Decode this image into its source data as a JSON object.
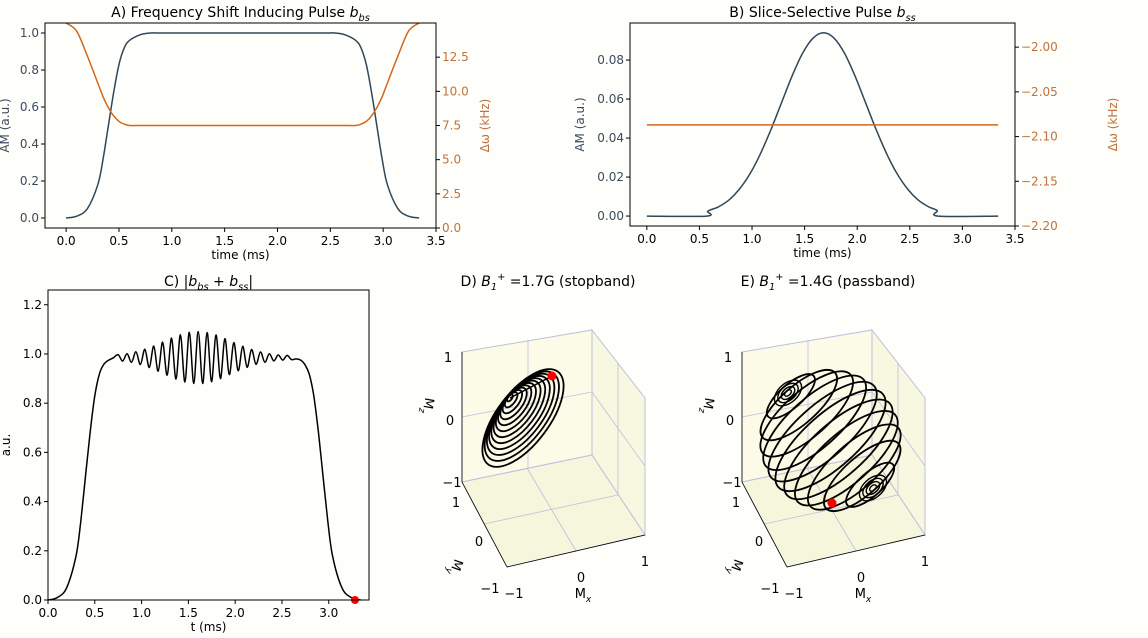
{
  "chart_data": [
    {
      "panel": "A",
      "type": "line",
      "title_parts": [
        {
          "t": "A) Frequency Shift Inducing Pulse "
        },
        {
          "t": "b",
          "style": "i"
        },
        {
          "t": "bs",
          "style": "sub"
        }
      ],
      "xlabel": "time (ms)",
      "ylabel": "AM (a.u.)",
      "y2label": "Δω (kHz)",
      "xlim": [
        -0.2,
        3.5
      ],
      "ylim": [
        -0.054,
        1.054
      ],
      "y2lim": [
        0,
        15
      ],
      "xticks": [
        "0.0",
        "0.5",
        "1.0",
        "1.5",
        "2.0",
        "2.5",
        "3.0",
        "3.5"
      ],
      "yticks": [
        "0.0",
        "0.2",
        "0.4",
        "0.6",
        "0.8",
        "1.0"
      ],
      "y2ticks": [
        "0.0",
        "2.5",
        "5.0",
        "7.5",
        "10.0",
        "12.5"
      ],
      "colors": {
        "left": "#3b4b5c",
        "right": "#c0733e"
      },
      "series": [
        {
          "name": "AM",
          "axis": "left",
          "color": "#2f4858",
          "t": [
            0,
            0.1,
            0.2,
            0.3,
            0.35,
            0.4,
            0.45,
            0.5,
            0.55,
            0.6,
            0.7,
            0.8,
            1.0,
            2.34,
            2.54,
            2.64,
            2.74,
            2.79,
            2.84,
            2.89,
            2.94,
            2.99,
            3.04,
            3.14,
            3.24,
            3.34
          ],
          "values": [
            0,
            0.01,
            0.05,
            0.18,
            0.32,
            0.5,
            0.68,
            0.83,
            0.92,
            0.96,
            0.99,
            1.0,
            1.0,
            1.0,
            1.0,
            0.99,
            0.96,
            0.92,
            0.83,
            0.68,
            0.5,
            0.32,
            0.18,
            0.05,
            0.01,
            0
          ]
        },
        {
          "name": "Δω",
          "axis": "right",
          "color": "#d2691e",
          "t": [
            0,
            0.1,
            0.2,
            0.3,
            0.35,
            0.4,
            0.45,
            0.5,
            0.55,
            0.6,
            0.7,
            0.8,
            1.0,
            2.34,
            2.54,
            2.64,
            2.74,
            2.79,
            2.84,
            2.89,
            2.94,
            2.99,
            3.04,
            3.14,
            3.24,
            3.34
          ],
          "values": [
            15,
            14.4,
            12.6,
            10.6,
            9.6,
            8.8,
            8.2,
            7.8,
            7.6,
            7.5,
            7.5,
            7.5,
            7.5,
            7.5,
            7.5,
            7.5,
            7.5,
            7.6,
            7.8,
            8.2,
            8.8,
            9.6,
            10.6,
            12.6,
            14.4,
            15
          ]
        }
      ]
    },
    {
      "panel": "B",
      "type": "line",
      "title_parts": [
        {
          "t": "B) Slice-Selective Pulse "
        },
        {
          "t": "b",
          "style": "i"
        },
        {
          "t": "ss",
          "style": "sub"
        }
      ],
      "xlabel": "time (ms)",
      "ylabel": "AM (a.u.)",
      "y2label": "Δω (kHz)",
      "xlim": [
        -0.16,
        3.5
      ],
      "ylim": [
        -0.0051,
        0.099
      ],
      "y2lim": [
        -2.2,
        -1.973
      ],
      "xticks": [
        "0.0",
        "0.5",
        "1.0",
        "1.5",
        "2.0",
        "2.5",
        "3.0",
        "3.5"
      ],
      "yticks": [
        "0.00",
        "0.02",
        "0.04",
        "0.06",
        "0.08"
      ],
      "y2ticks": [
        "−2.00",
        "−2.05",
        "−2.10",
        "−2.15",
        "−2.20"
      ],
      "colors": {
        "left": "#3b4b5c",
        "right": "#c0733e"
      },
      "series": [
        {
          "name": "AM",
          "axis": "left",
          "color": "#2f4858",
          "t": [
            0,
            0.57,
            0.58,
            0.68,
            0.78,
            0.88,
            0.98,
            1.08,
            1.18,
            1.28,
            1.38,
            1.48,
            1.58,
            1.68,
            1.78,
            1.88,
            1.98,
            2.08,
            2.18,
            2.28,
            2.38,
            2.48,
            2.58,
            2.68,
            2.76,
            2.77,
            3.34
          ],
          "values": [
            0,
            0,
            0.0025,
            0.0047,
            0.0082,
            0.0138,
            0.0216,
            0.0319,
            0.0444,
            0.0581,
            0.0717,
            0.0834,
            0.0912,
            0.094,
            0.0912,
            0.0834,
            0.0717,
            0.0581,
            0.0444,
            0.0319,
            0.0216,
            0.0138,
            0.0082,
            0.0047,
            0.0028,
            0,
            0
          ]
        },
        {
          "name": "Δω",
          "axis": "right",
          "color": "#d2691e",
          "t": [
            0,
            3.34
          ],
          "values": [
            -2.087,
            -2.087
          ]
        }
      ]
    },
    {
      "panel": "C",
      "type": "line",
      "title_parts": [
        {
          "t": "C)  |"
        },
        {
          "t": "b",
          "style": "i"
        },
        {
          "t": "bs",
          "style": "sub"
        },
        {
          "t": " + "
        },
        {
          "t": "b",
          "style": "i"
        },
        {
          "t": "ss",
          "style": "sub"
        },
        {
          "t": "|"
        }
      ],
      "xlabel": "t (ms)",
      "ylabel": "a.u.",
      "xlim": [
        0,
        3.43
      ],
      "ylim": [
        0,
        1.26
      ],
      "xticks": [
        "0.0",
        "0.5",
        "1.0",
        "1.5",
        "2.0",
        "2.5",
        "3.0"
      ],
      "yticks": [
        "0.0",
        "0.2",
        "0.4",
        "0.6",
        "0.8",
        "1.0",
        "1.2"
      ],
      "series": [
        {
          "name": "|b_bs + b_ss|",
          "color": "#000000",
          "t": [
            0,
            0.1,
            0.2,
            0.3,
            0.35,
            0.4,
            0.45,
            0.5,
            0.55,
            0.6,
            0.65,
            0.7,
            0.75,
            0.7975,
            0.845,
            0.8925,
            0.94,
            0.9875,
            1.035,
            1.0825,
            1.13,
            1.1775,
            1.225,
            1.2725,
            1.32,
            1.3675,
            1.415,
            1.4625,
            1.51,
            1.5575,
            1.605,
            1.6525,
            1.7,
            1.7475,
            1.795,
            1.8425,
            1.89,
            1.9375,
            1.985,
            2.0325,
            2.08,
            2.1275,
            2.175,
            2.2225,
            2.27,
            2.3175,
            2.365,
            2.4125,
            2.46,
            2.5075,
            2.555,
            2.6025,
            2.65,
            2.7,
            2.74,
            2.79,
            2.84,
            2.89,
            2.94,
            2.99,
            3.04,
            3.14,
            3.24,
            3.34
          ],
          "values": [
            0,
            0.01,
            0.05,
            0.18,
            0.32,
            0.5,
            0.68,
            0.83,
            0.92,
            0.96,
            0.975,
            0.985,
            0.997,
            0.971,
            1.001,
            0.966,
            1.009,
            0.957,
            1.019,
            0.945,
            1.032,
            0.93,
            1.048,
            0.914,
            1.064,
            0.898,
            1.078,
            0.886,
            1.088,
            0.88,
            1.091,
            0.88,
            1.087,
            0.887,
            1.077,
            0.9,
            1.062,
            0.916,
            1.046,
            0.932,
            1.031,
            0.946,
            1.018,
            0.958,
            1.008,
            0.966,
            1.001,
            0.972,
            0.996,
            0.975,
            0.994,
            0.977,
            0.98,
            0.975,
            0.96,
            0.92,
            0.83,
            0.68,
            0.5,
            0.32,
            0.18,
            0.05,
            0.01,
            0
          ]
        }
      ],
      "marker": {
        "t": 3.28,
        "value": 0.0,
        "color": "#ff0000"
      }
    },
    {
      "panel": "D",
      "type": "line3d",
      "title_parts": [
        {
          "t": "D)  "
        },
        {
          "t": "B",
          "style": "i"
        },
        {
          "t": "1",
          "style": "sub"
        },
        {
          "t": "+",
          "style": "sup"
        },
        {
          "t": " =1.7G (stopband)"
        }
      ],
      "xlabel_parts": [
        {
          "t": "M"
        },
        {
          "t": "x",
          "style": "sub"
        }
      ],
      "ylabel_parts": [
        {
          "t": "M"
        },
        {
          "t": "y",
          "style": "sub"
        }
      ],
      "zlabel_parts": [
        {
          "t": "M"
        },
        {
          "t": "z",
          "style": "sub"
        }
      ],
      "xticks": [
        "−1",
        "0",
        "1"
      ],
      "yticks": [
        "1",
        "0",
        "−1"
      ],
      "zticks": [
        "1",
        "0",
        "−1"
      ],
      "marker_color": "#ff0000"
    },
    {
      "panel": "E",
      "type": "line3d",
      "title_parts": [
        {
          "t": "E)  "
        },
        {
          "t": "B",
          "style": "i"
        },
        {
          "t": "1",
          "style": "sub"
        },
        {
          "t": "+",
          "style": "sup"
        },
        {
          "t": " =1.4G (passband)"
        }
      ],
      "xlabel_parts": [
        {
          "t": "M"
        },
        {
          "t": "x",
          "style": "sub"
        }
      ],
      "ylabel_parts": [
        {
          "t": "M"
        },
        {
          "t": "y",
          "style": "sub"
        }
      ],
      "zlabel_parts": [
        {
          "t": "M"
        },
        {
          "t": "z",
          "style": "sub"
        }
      ],
      "xticks": [
        "−1",
        "0",
        "1"
      ],
      "yticks": [
        "1",
        "0",
        "−1"
      ],
      "zticks": [
        "1",
        "0",
        "−1"
      ],
      "marker_color": "#ff0000"
    }
  ]
}
